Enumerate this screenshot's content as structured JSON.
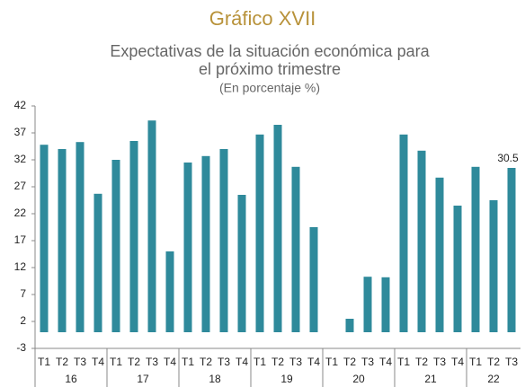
{
  "chart_data": {
    "type": "bar",
    "title": "Gráfico XVII",
    "subtitle": [
      "Expectativas de la situación económica para",
      "el próximo trimestre"
    ],
    "unit_note": "(En porcentaje %)",
    "color": "#2f8a9b",
    "ylim": [
      -3,
      42
    ],
    "yticks": [
      -3,
      2,
      7,
      12,
      17,
      22,
      27,
      32,
      37,
      42
    ],
    "groups": [
      {
        "name": "16",
        "categories": [
          "T1",
          "T2",
          "T3",
          "T4"
        ],
        "values": [
          34.8,
          34,
          35.3,
          25.7
        ]
      },
      {
        "name": "17",
        "categories": [
          "T1",
          "T2",
          "T3",
          "T4"
        ],
        "values": [
          32,
          35.5,
          39.3,
          15
        ]
      },
      {
        "name": "18",
        "categories": [
          "T1",
          "T2",
          "T3",
          "T4"
        ],
        "values": [
          31.5,
          32.7,
          34,
          25.5
        ]
      },
      {
        "name": "19",
        "categories": [
          "T1",
          "T2",
          "T3",
          "T4"
        ],
        "values": [
          36.7,
          38.5,
          30.7,
          19.5
        ]
      },
      {
        "name": "20",
        "categories": [
          "T1",
          "T2",
          "T3",
          "T4"
        ],
        "values": [
          null,
          2.5,
          10.3,
          10.2
        ]
      },
      {
        "name": "21",
        "categories": [
          "T1",
          "T2",
          "T3",
          "T4"
        ],
        "values": [
          36.7,
          33.7,
          28.7,
          23.5
        ]
      },
      {
        "name": "22",
        "categories": [
          "T1",
          "T2",
          "T3"
        ],
        "values": [
          30.7,
          24.5,
          30.5
        ],
        "value_labels": [
          null,
          null,
          "30.5"
        ]
      }
    ]
  }
}
